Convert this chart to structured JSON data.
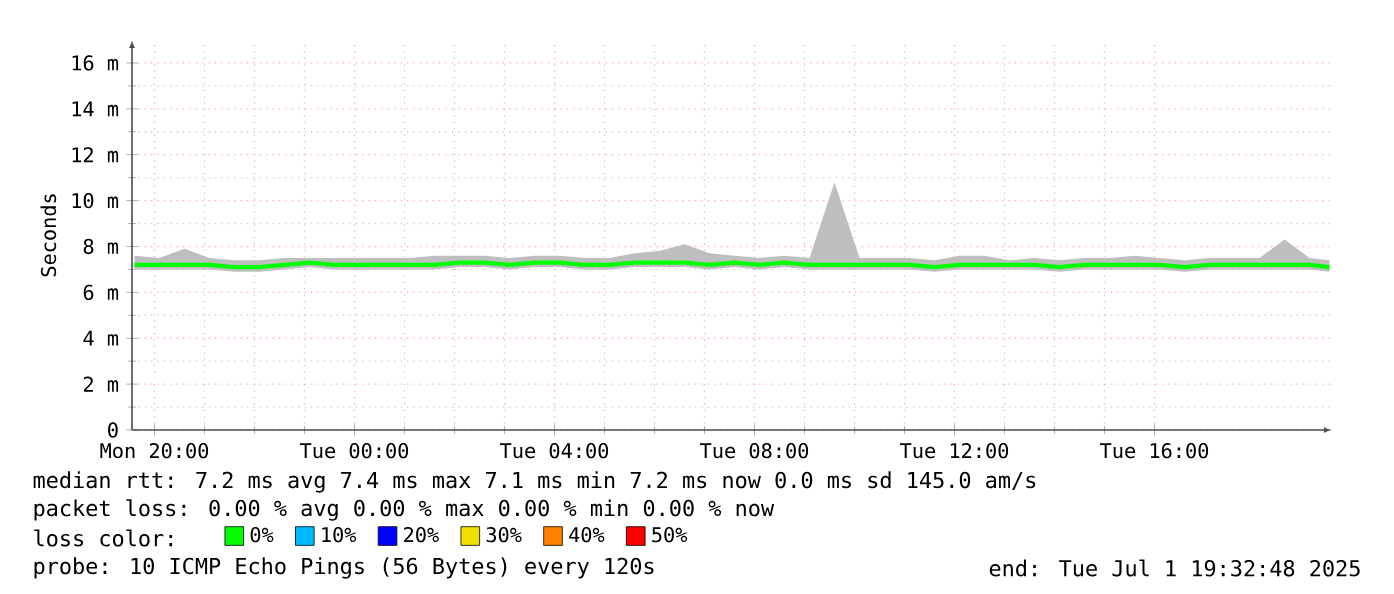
{
  "chart_data": {
    "type": "line",
    "ylabel": "Seconds",
    "x": [
      "2025-06-30T19:36",
      "2025-06-30T20:06",
      "2025-06-30T20:36",
      "2025-06-30T21:06",
      "2025-06-30T21:36",
      "2025-06-30T22:06",
      "2025-06-30T22:36",
      "2025-06-30T23:06",
      "2025-06-30T23:36",
      "2025-07-01T00:06",
      "2025-07-01T00:36",
      "2025-07-01T01:06",
      "2025-07-01T01:36",
      "2025-07-01T02:06",
      "2025-07-01T02:36",
      "2025-07-01T03:06",
      "2025-07-01T03:36",
      "2025-07-01T04:06",
      "2025-07-01T04:36",
      "2025-07-01T05:06",
      "2025-07-01T05:36",
      "2025-07-01T06:06",
      "2025-07-01T06:36",
      "2025-07-01T07:06",
      "2025-07-01T07:36",
      "2025-07-01T08:06",
      "2025-07-01T08:36",
      "2025-07-01T09:06",
      "2025-07-01T09:36",
      "2025-07-01T10:06",
      "2025-07-01T10:36",
      "2025-07-01T11:06",
      "2025-07-01T11:36",
      "2025-07-01T12:06",
      "2025-07-01T12:36",
      "2025-07-01T13:06",
      "2025-07-01T13:36",
      "2025-07-01T14:06",
      "2025-07-01T14:36",
      "2025-07-01T15:06",
      "2025-07-01T15:36",
      "2025-07-01T16:06",
      "2025-07-01T16:36",
      "2025-07-01T17:06",
      "2025-07-01T17:36",
      "2025-07-01T18:06",
      "2025-07-01T18:36",
      "2025-07-01T19:06",
      "2025-07-01T19:30"
    ],
    "series": [
      {
        "name": "0%",
        "color": "#00ff00",
        "values": [
          7.2,
          7.2,
          7.2,
          7.2,
          7.1,
          7.1,
          7.2,
          7.3,
          7.2,
          7.2,
          7.2,
          7.2,
          7.2,
          7.3,
          7.3,
          7.2,
          7.3,
          7.3,
          7.2,
          7.2,
          7.3,
          7.3,
          7.3,
          7.2,
          7.3,
          7.2,
          7.3,
          7.2,
          7.2,
          7.2,
          7.2,
          7.2,
          7.1,
          7.2,
          7.2,
          7.2,
          7.2,
          7.1,
          7.2,
          7.2,
          7.2,
          7.2,
          7.1,
          7.2,
          7.2,
          7.2,
          7.2,
          7.2,
          7.1
        ],
        "lower": [
          7.0,
          7.0,
          7.0,
          7.0,
          6.9,
          6.9,
          7.0,
          7.1,
          7.0,
          7.0,
          7.0,
          7.0,
          7.0,
          7.1,
          7.1,
          7.0,
          7.1,
          7.1,
          7.0,
          7.0,
          7.1,
          7.1,
          7.1,
          7.0,
          7.1,
          7.0,
          7.1,
          7.0,
          7.0,
          7.0,
          7.0,
          7.0,
          6.9,
          7.0,
          7.0,
          7.0,
          7.0,
          6.9,
          7.0,
          7.0,
          7.0,
          7.0,
          6.9,
          7.0,
          7.0,
          7.0,
          7.0,
          7.0,
          6.9
        ],
        "upper": [
          7.6,
          7.5,
          7.9,
          7.5,
          7.4,
          7.4,
          7.5,
          7.5,
          7.5,
          7.5,
          7.5,
          7.5,
          7.6,
          7.6,
          7.6,
          7.5,
          7.6,
          7.6,
          7.5,
          7.5,
          7.7,
          7.8,
          8.1,
          7.7,
          7.6,
          7.5,
          7.6,
          7.5,
          10.8,
          7.5,
          7.5,
          7.5,
          7.4,
          7.6,
          7.6,
          7.4,
          7.5,
          7.4,
          7.5,
          7.5,
          7.6,
          7.5,
          7.4,
          7.5,
          7.5,
          7.5,
          8.3,
          7.5,
          7.4
        ]
      },
      {
        "name": "10%",
        "color": "#00b8ff",
        "values": [
          null,
          null,
          null,
          null,
          null,
          null,
          null,
          null,
          null,
          null,
          null,
          null,
          null,
          null,
          null,
          null,
          null,
          null,
          null,
          null,
          null,
          null,
          null,
          null,
          null,
          null,
          null,
          null,
          null,
          null,
          null,
          null,
          null,
          null,
          null,
          null,
          null,
          null,
          null,
          null,
          null,
          null,
          null,
          null,
          null,
          null,
          null,
          null,
          null
        ]
      },
      {
        "name": "20%",
        "color": "#0000ff",
        "values": [
          null,
          null,
          null,
          null,
          null,
          null,
          null,
          null,
          null,
          null,
          null,
          null,
          null,
          null,
          null,
          null,
          null,
          null,
          null,
          null,
          null,
          null,
          null,
          null,
          null,
          null,
          null,
          null,
          null,
          null,
          null,
          null,
          null,
          null,
          null,
          null,
          null,
          null,
          null,
          null,
          null,
          null,
          null,
          null,
          null,
          null,
          null,
          null,
          null
        ]
      },
      {
        "name": "30%",
        "color": "#f0e000",
        "values": [
          null,
          null,
          null,
          null,
          null,
          null,
          null,
          null,
          null,
          null,
          null,
          null,
          null,
          null,
          null,
          null,
          null,
          null,
          null,
          null,
          null,
          null,
          null,
          null,
          null,
          null,
          null,
          null,
          null,
          null,
          null,
          null,
          null,
          null,
          null,
          null,
          null,
          null,
          null,
          null,
          null,
          null,
          null,
          null,
          null,
          null,
          null,
          null,
          null
        ]
      },
      {
        "name": "40%",
        "color": "#ff8000",
        "values": [
          null,
          null,
          null,
          null,
          null,
          null,
          null,
          null,
          null,
          null,
          null,
          null,
          null,
          null,
          null,
          null,
          null,
          null,
          null,
          null,
          null,
          null,
          null,
          null,
          null,
          null,
          null,
          null,
          null,
          null,
          null,
          null,
          null,
          null,
          null,
          null,
          null,
          null,
          null,
          null,
          null,
          null,
          null,
          null,
          null,
          null,
          null,
          null,
          null
        ]
      },
      {
        "name": "50%",
        "color": "#ff0000",
        "values": [
          null,
          null,
          null,
          null,
          null,
          null,
          null,
          null,
          null,
          null,
          null,
          null,
          null,
          null,
          null,
          null,
          null,
          null,
          null,
          null,
          null,
          null,
          null,
          null,
          null,
          null,
          null,
          null,
          null,
          null,
          null,
          null,
          null,
          null,
          null,
          null,
          null,
          null,
          null,
          null,
          null,
          null,
          null,
          null,
          null,
          null,
          null,
          null,
          null
        ]
      }
    ],
    "xlim": [
      "2025-06-30T19:33",
      "2025-07-01T19:33"
    ],
    "xticks": [
      {
        "value": "2025-06-30T20:00",
        "label": "Mon 20:00"
      },
      {
        "value": "2025-07-01T00:00",
        "label": "Tue 00:00"
      },
      {
        "value": "2025-07-01T04:00",
        "label": "Tue 04:00"
      },
      {
        "value": "2025-07-01T08:00",
        "label": "Tue 08:00"
      },
      {
        "value": "2025-07-01T12:00",
        "label": "Tue 12:00"
      },
      {
        "value": "2025-07-01T16:00",
        "label": "Tue 16:00"
      }
    ],
    "ylim": [
      0,
      17
    ],
    "yticks": [
      0,
      {
        "value": 2,
        "label": "2 m"
      },
      {
        "value": 4,
        "label": "4 m"
      },
      {
        "value": 6,
        "label": "6 m"
      },
      {
        "value": 8,
        "label": "8 m"
      },
      {
        "value": 10,
        "label": "10 m"
      },
      {
        "value": 12,
        "label": "12 m"
      },
      {
        "value": 14,
        "label": "14 m"
      },
      {
        "value": 16,
        "label": "16 m"
      }
    ],
    "grid": true,
    "legend": "bottom",
    "annotations": [
      "median rtt:  7.2 ms avg  7.4 ms max  7.1 ms min  7.2 ms now  0.0 ms sd  145.0   am/s",
      "packet loss: 0.00 % avg  0.00 % max  0.00 % min  0.00 % now",
      "loss color:",
      "probe:       10 ICMP Echo Pings (56 Bytes) every 120s",
      "end: Tue Jul  1 19:32:48 2025"
    ]
  }
}
